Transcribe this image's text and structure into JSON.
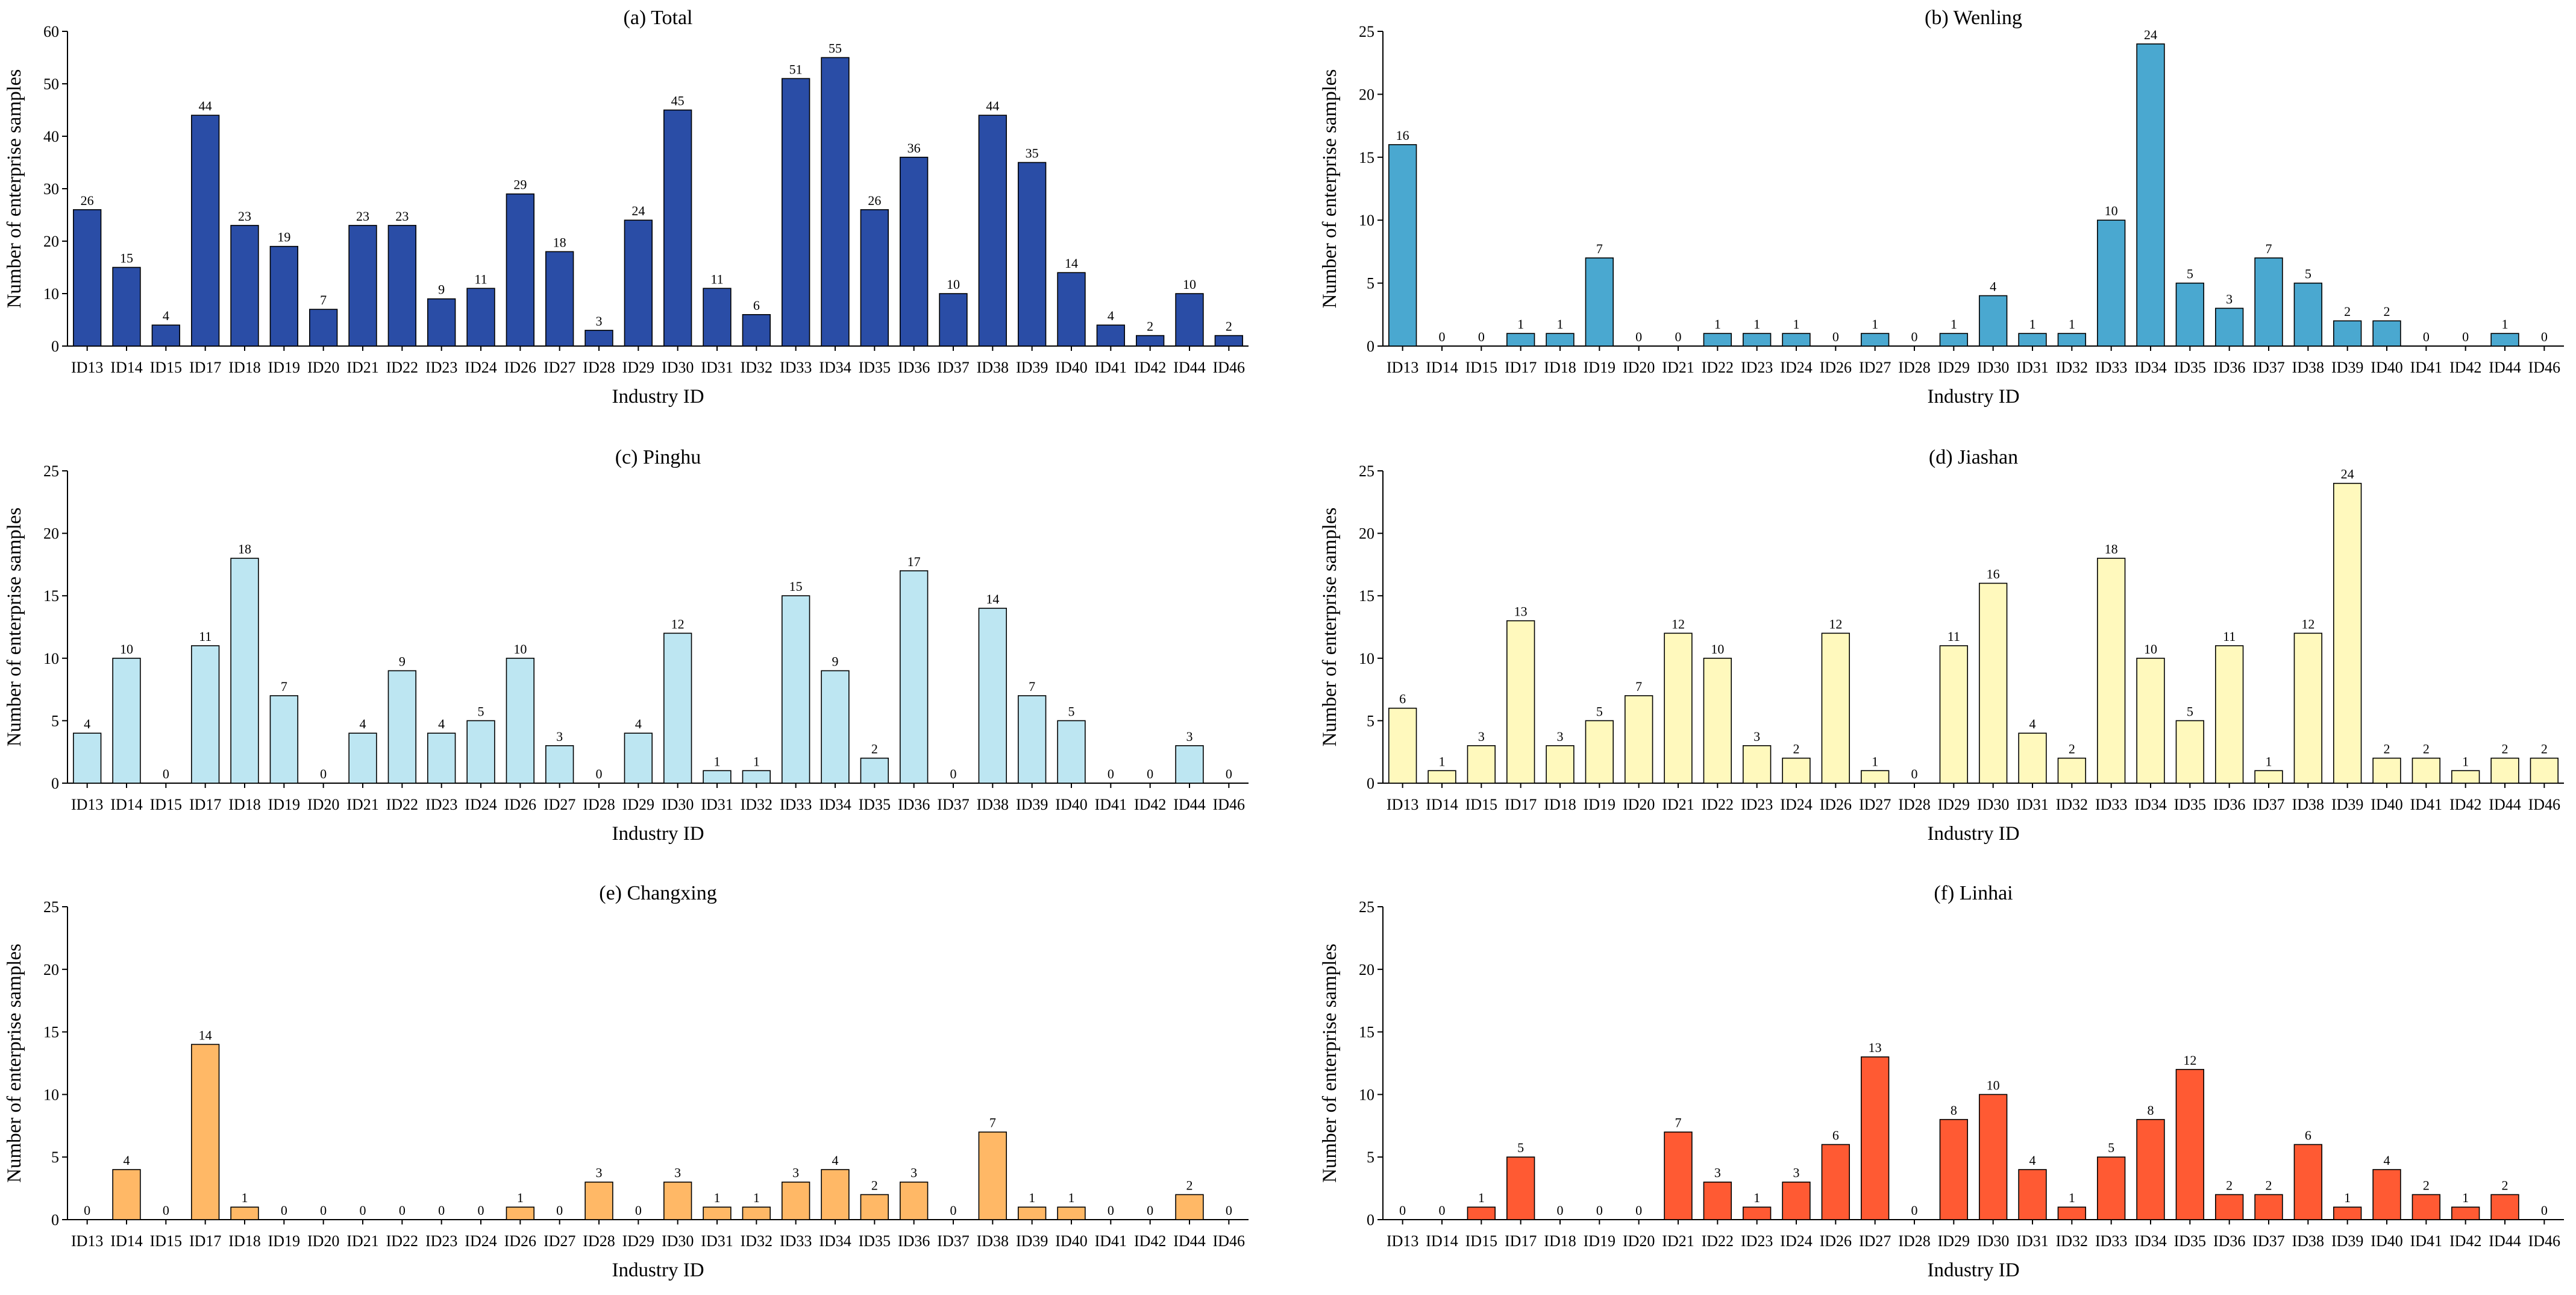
{
  "figure": {
    "panel_order": [
      "total",
      "wenling",
      "pinghu",
      "jiashan",
      "changxing",
      "linhai"
    ]
  },
  "chart_data": [
    {
      "id": "total",
      "type": "bar",
      "title": "(a) Total",
      "xlabel": "Industry ID",
      "ylabel": "Number of enterprise samples",
      "ylim": [
        0,
        60
      ],
      "yticks": [
        0,
        10,
        20,
        30,
        40,
        50,
        60
      ],
      "color": "#2a4da6",
      "categories": [
        "ID13",
        "ID14",
        "ID15",
        "ID17",
        "ID18",
        "ID19",
        "ID20",
        "ID21",
        "ID22",
        "ID23",
        "ID24",
        "ID26",
        "ID27",
        "ID28",
        "ID29",
        "ID30",
        "ID31",
        "ID32",
        "ID33",
        "ID34",
        "ID35",
        "ID36",
        "ID37",
        "ID38",
        "ID39",
        "ID40",
        "ID41",
        "ID42",
        "ID44",
        "ID46"
      ],
      "values": [
        26,
        15,
        4,
        44,
        23,
        19,
        7,
        23,
        23,
        9,
        11,
        29,
        18,
        3,
        24,
        45,
        11,
        6,
        51,
        55,
        26,
        36,
        10,
        44,
        35,
        14,
        4,
        2,
        10,
        2
      ]
    },
    {
      "id": "wenling",
      "type": "bar",
      "title": "(b) Wenling",
      "xlabel": "Industry ID",
      "ylabel": "Number of enterprise samples",
      "ylim": [
        0,
        25
      ],
      "yticks": [
        0,
        5,
        10,
        15,
        20,
        25
      ],
      "color": "#4aa8d0",
      "categories": [
        "ID13",
        "ID14",
        "ID15",
        "ID17",
        "ID18",
        "ID19",
        "ID20",
        "ID21",
        "ID22",
        "ID23",
        "ID24",
        "ID26",
        "ID27",
        "ID28",
        "ID29",
        "ID30",
        "ID31",
        "ID32",
        "ID33",
        "ID34",
        "ID35",
        "ID36",
        "ID37",
        "ID38",
        "ID39",
        "ID40",
        "ID41",
        "ID42",
        "ID44",
        "ID46"
      ],
      "values": [
        16,
        0,
        0,
        1,
        1,
        7,
        0,
        0,
        1,
        1,
        1,
        0,
        1,
        0,
        1,
        4,
        1,
        1,
        10,
        24,
        5,
        3,
        7,
        5,
        2,
        2,
        0,
        0,
        1,
        0
      ]
    },
    {
      "id": "pinghu",
      "type": "bar",
      "title": "(c) Pinghu",
      "xlabel": "Industry ID",
      "ylabel": "Number of enterprise samples",
      "ylim": [
        0,
        25
      ],
      "yticks": [
        0,
        5,
        10,
        15,
        20,
        25
      ],
      "color": "#bde6f2",
      "categories": [
        "ID13",
        "ID14",
        "ID15",
        "ID17",
        "ID18",
        "ID19",
        "ID20",
        "ID21",
        "ID22",
        "ID23",
        "ID24",
        "ID26",
        "ID27",
        "ID28",
        "ID29",
        "ID30",
        "ID31",
        "ID32",
        "ID33",
        "ID34",
        "ID35",
        "ID36",
        "ID37",
        "ID38",
        "ID39",
        "ID40",
        "ID41",
        "ID42",
        "ID44",
        "ID46"
      ],
      "values": [
        4,
        10,
        0,
        11,
        18,
        7,
        0,
        4,
        9,
        4,
        5,
        10,
        3,
        0,
        4,
        12,
        1,
        1,
        15,
        9,
        2,
        17,
        0,
        14,
        7,
        5,
        0,
        0,
        3,
        0
      ]
    },
    {
      "id": "jiashan",
      "type": "bar",
      "title": "(d) Jiashan",
      "xlabel": "Industry ID",
      "ylabel": "Number of enterprise samples",
      "ylim": [
        0,
        25
      ],
      "yticks": [
        0,
        5,
        10,
        15,
        20,
        25
      ],
      "color": "#fff9bd",
      "categories": [
        "ID13",
        "ID14",
        "ID15",
        "ID17",
        "ID18",
        "ID19",
        "ID20",
        "ID21",
        "ID22",
        "ID23",
        "ID24",
        "ID26",
        "ID27",
        "ID28",
        "ID29",
        "ID30",
        "ID31",
        "ID32",
        "ID33",
        "ID34",
        "ID35",
        "ID36",
        "ID37",
        "ID38",
        "ID39",
        "ID40",
        "ID41",
        "ID42",
        "ID44",
        "ID46"
      ],
      "values": [
        6,
        1,
        3,
        13,
        3,
        5,
        7,
        12,
        10,
        3,
        2,
        12,
        1,
        0,
        11,
        16,
        4,
        2,
        18,
        10,
        5,
        11,
        1,
        12,
        24,
        2,
        2,
        1,
        2,
        2
      ]
    },
    {
      "id": "changxing",
      "type": "bar",
      "title": "(e) Changxing",
      "xlabel": "Industry ID",
      "ylabel": "Number of enterprise samples",
      "ylim": [
        0,
        25
      ],
      "yticks": [
        0,
        5,
        10,
        15,
        20,
        25
      ],
      "color": "#ffb866",
      "categories": [
        "ID13",
        "ID14",
        "ID15",
        "ID17",
        "ID18",
        "ID19",
        "ID20",
        "ID21",
        "ID22",
        "ID23",
        "ID24",
        "ID26",
        "ID27",
        "ID28",
        "ID29",
        "ID30",
        "ID31",
        "ID32",
        "ID33",
        "ID34",
        "ID35",
        "ID36",
        "ID37",
        "ID38",
        "ID39",
        "ID40",
        "ID41",
        "ID42",
        "ID44",
        "ID46"
      ],
      "values": [
        0,
        4,
        0,
        14,
        1,
        0,
        0,
        0,
        0,
        0,
        0,
        1,
        0,
        3,
        0,
        3,
        1,
        1,
        3,
        4,
        2,
        3,
        0,
        7,
        1,
        1,
        0,
        0,
        2,
        0
      ]
    },
    {
      "id": "linhai",
      "type": "bar",
      "title": "(f) Linhai",
      "xlabel": "Industry ID",
      "ylabel": "Number of enterprise samples",
      "ylim": [
        0,
        25
      ],
      "yticks": [
        0,
        5,
        10,
        15,
        20,
        25
      ],
      "color": "#ff5a33",
      "categories": [
        "ID13",
        "ID14",
        "ID15",
        "ID17",
        "ID18",
        "ID19",
        "ID20",
        "ID21",
        "ID22",
        "ID23",
        "ID24",
        "ID26",
        "ID27",
        "ID28",
        "ID29",
        "ID30",
        "ID31",
        "ID32",
        "ID33",
        "ID34",
        "ID35",
        "ID36",
        "ID37",
        "ID38",
        "ID39",
        "ID40",
        "ID41",
        "ID42",
        "ID44",
        "ID46"
      ],
      "values": [
        0,
        0,
        1,
        5,
        0,
        0,
        0,
        7,
        3,
        1,
        3,
        6,
        13,
        0,
        8,
        10,
        4,
        1,
        5,
        8,
        12,
        2,
        2,
        6,
        1,
        4,
        2,
        1,
        2,
        0
      ]
    }
  ]
}
